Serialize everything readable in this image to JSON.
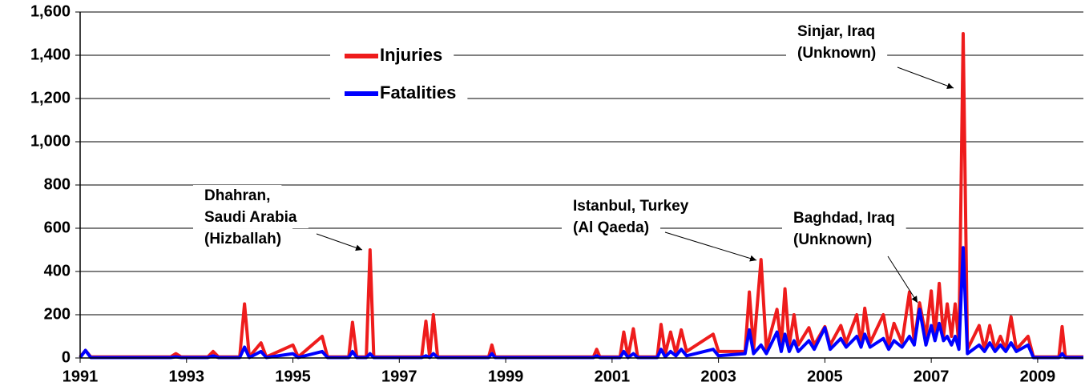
{
  "chart_data": {
    "type": "line",
    "x": [
      1991.0,
      1991.1,
      1991.2,
      1992.7,
      1992.8,
      1992.9,
      1993.4,
      1993.5,
      1993.6,
      1994.0,
      1994.09,
      1994.18,
      1994.4,
      1994.5,
      1995.0,
      1995.1,
      1995.55,
      1995.65,
      1996.05,
      1996.12,
      1996.2,
      1996.38,
      1996.45,
      1996.52,
      1997.42,
      1997.5,
      1997.57,
      1997.64,
      1997.72,
      1998.68,
      1998.74,
      1998.8,
      2000.65,
      2000.71,
      2000.77,
      2001.15,
      2001.22,
      2001.3,
      2001.4,
      2001.48,
      2001.85,
      2001.92,
      2002.0,
      2002.1,
      2002.2,
      2002.3,
      2002.4,
      2002.9,
      2003.0,
      2003.5,
      2003.58,
      2003.66,
      2003.8,
      2003.9,
      2004.1,
      2004.18,
      2004.25,
      2004.33,
      2004.42,
      2004.5,
      2004.7,
      2004.8,
      2005.0,
      2005.1,
      2005.3,
      2005.4,
      2005.6,
      2005.68,
      2005.75,
      2005.85,
      2006.1,
      2006.2,
      2006.3,
      2006.45,
      2006.59,
      2006.68,
      2006.78,
      2006.9,
      2007.0,
      2007.07,
      2007.15,
      2007.23,
      2007.3,
      2007.38,
      2007.45,
      2007.52,
      2007.6,
      2007.68,
      2007.9,
      2008.0,
      2008.1,
      2008.2,
      2008.3,
      2008.4,
      2008.5,
      2008.6,
      2008.82,
      2008.92,
      2009.4,
      2009.46,
      2009.52,
      2009.86
    ],
    "series": [
      {
        "name": "Injuries",
        "color": "#ee1c1c",
        "values": [
          5,
          35,
          5,
          5,
          20,
          5,
          5,
          30,
          5,
          5,
          250,
          5,
          70,
          5,
          60,
          5,
          100,
          5,
          5,
          165,
          5,
          5,
          500,
          5,
          5,
          170,
          5,
          200,
          5,
          5,
          60,
          5,
          5,
          40,
          5,
          5,
          120,
          5,
          135,
          5,
          5,
          155,
          20,
          120,
          20,
          130,
          30,
          110,
          30,
          30,
          305,
          40,
          455,
          40,
          225,
          60,
          320,
          60,
          200,
          60,
          140,
          60,
          145,
          60,
          150,
          70,
          200,
          60,
          230,
          70,
          200,
          60,
          160,
          70,
          305,
          70,
          255,
          100,
          310,
          100,
          345,
          100,
          250,
          100,
          250,
          60,
          1500,
          40,
          150,
          40,
          150,
          40,
          100,
          40,
          190,
          40,
          100,
          5,
          5,
          145,
          5,
          5
        ]
      },
      {
        "name": "Fatalities",
        "color": "#0000ff",
        "values": [
          2,
          35,
          2,
          2,
          5,
          2,
          2,
          10,
          2,
          2,
          50,
          2,
          30,
          2,
          20,
          2,
          30,
          2,
          2,
          30,
          2,
          2,
          20,
          2,
          2,
          10,
          2,
          20,
          2,
          2,
          20,
          2,
          2,
          10,
          2,
          2,
          30,
          2,
          20,
          2,
          2,
          40,
          5,
          30,
          10,
          40,
          10,
          40,
          10,
          20,
          130,
          20,
          60,
          20,
          120,
          30,
          110,
          30,
          80,
          30,
          80,
          40,
          140,
          40,
          90,
          50,
          100,
          50,
          110,
          50,
          90,
          40,
          80,
          50,
          100,
          60,
          225,
          60,
          150,
          80,
          160,
          80,
          100,
          60,
          100,
          40,
          510,
          20,
          60,
          30,
          70,
          30,
          60,
          30,
          70,
          30,
          60,
          2,
          2,
          20,
          2,
          2
        ]
      }
    ],
    "xlim": [
      1991,
      2009.86
    ],
    "xticks": [
      1991,
      1993,
      1995,
      1997,
      1999,
      2001,
      2003,
      2005,
      2007,
      2009
    ],
    "ylim": [
      0,
      1600
    ],
    "yticks": [
      0,
      200,
      400,
      600,
      800,
      {
        "value": 1000,
        "label": "1,000"
      },
      {
        "value": 1200,
        "label": "1,200"
      },
      {
        "value": 1400,
        "label": "1,400"
      },
      {
        "value": 1600,
        "label": "1,600"
      }
    ],
    "grid": true,
    "legend": "top",
    "annotations": [
      {
        "lines": [
          "Sinjar, Iraq",
          "(Unknown)"
        ]
      },
      {
        "lines": [
          "Dhahran,",
          "Saudi Arabia",
          "(Hizballah)"
        ]
      },
      {
        "lines": [
          "Istanbul, Turkey",
          "(Al Qaeda)"
        ]
      },
      {
        "lines": [
          "Baghdad, Iraq",
          "(Unknown)"
        ]
      }
    ]
  }
}
